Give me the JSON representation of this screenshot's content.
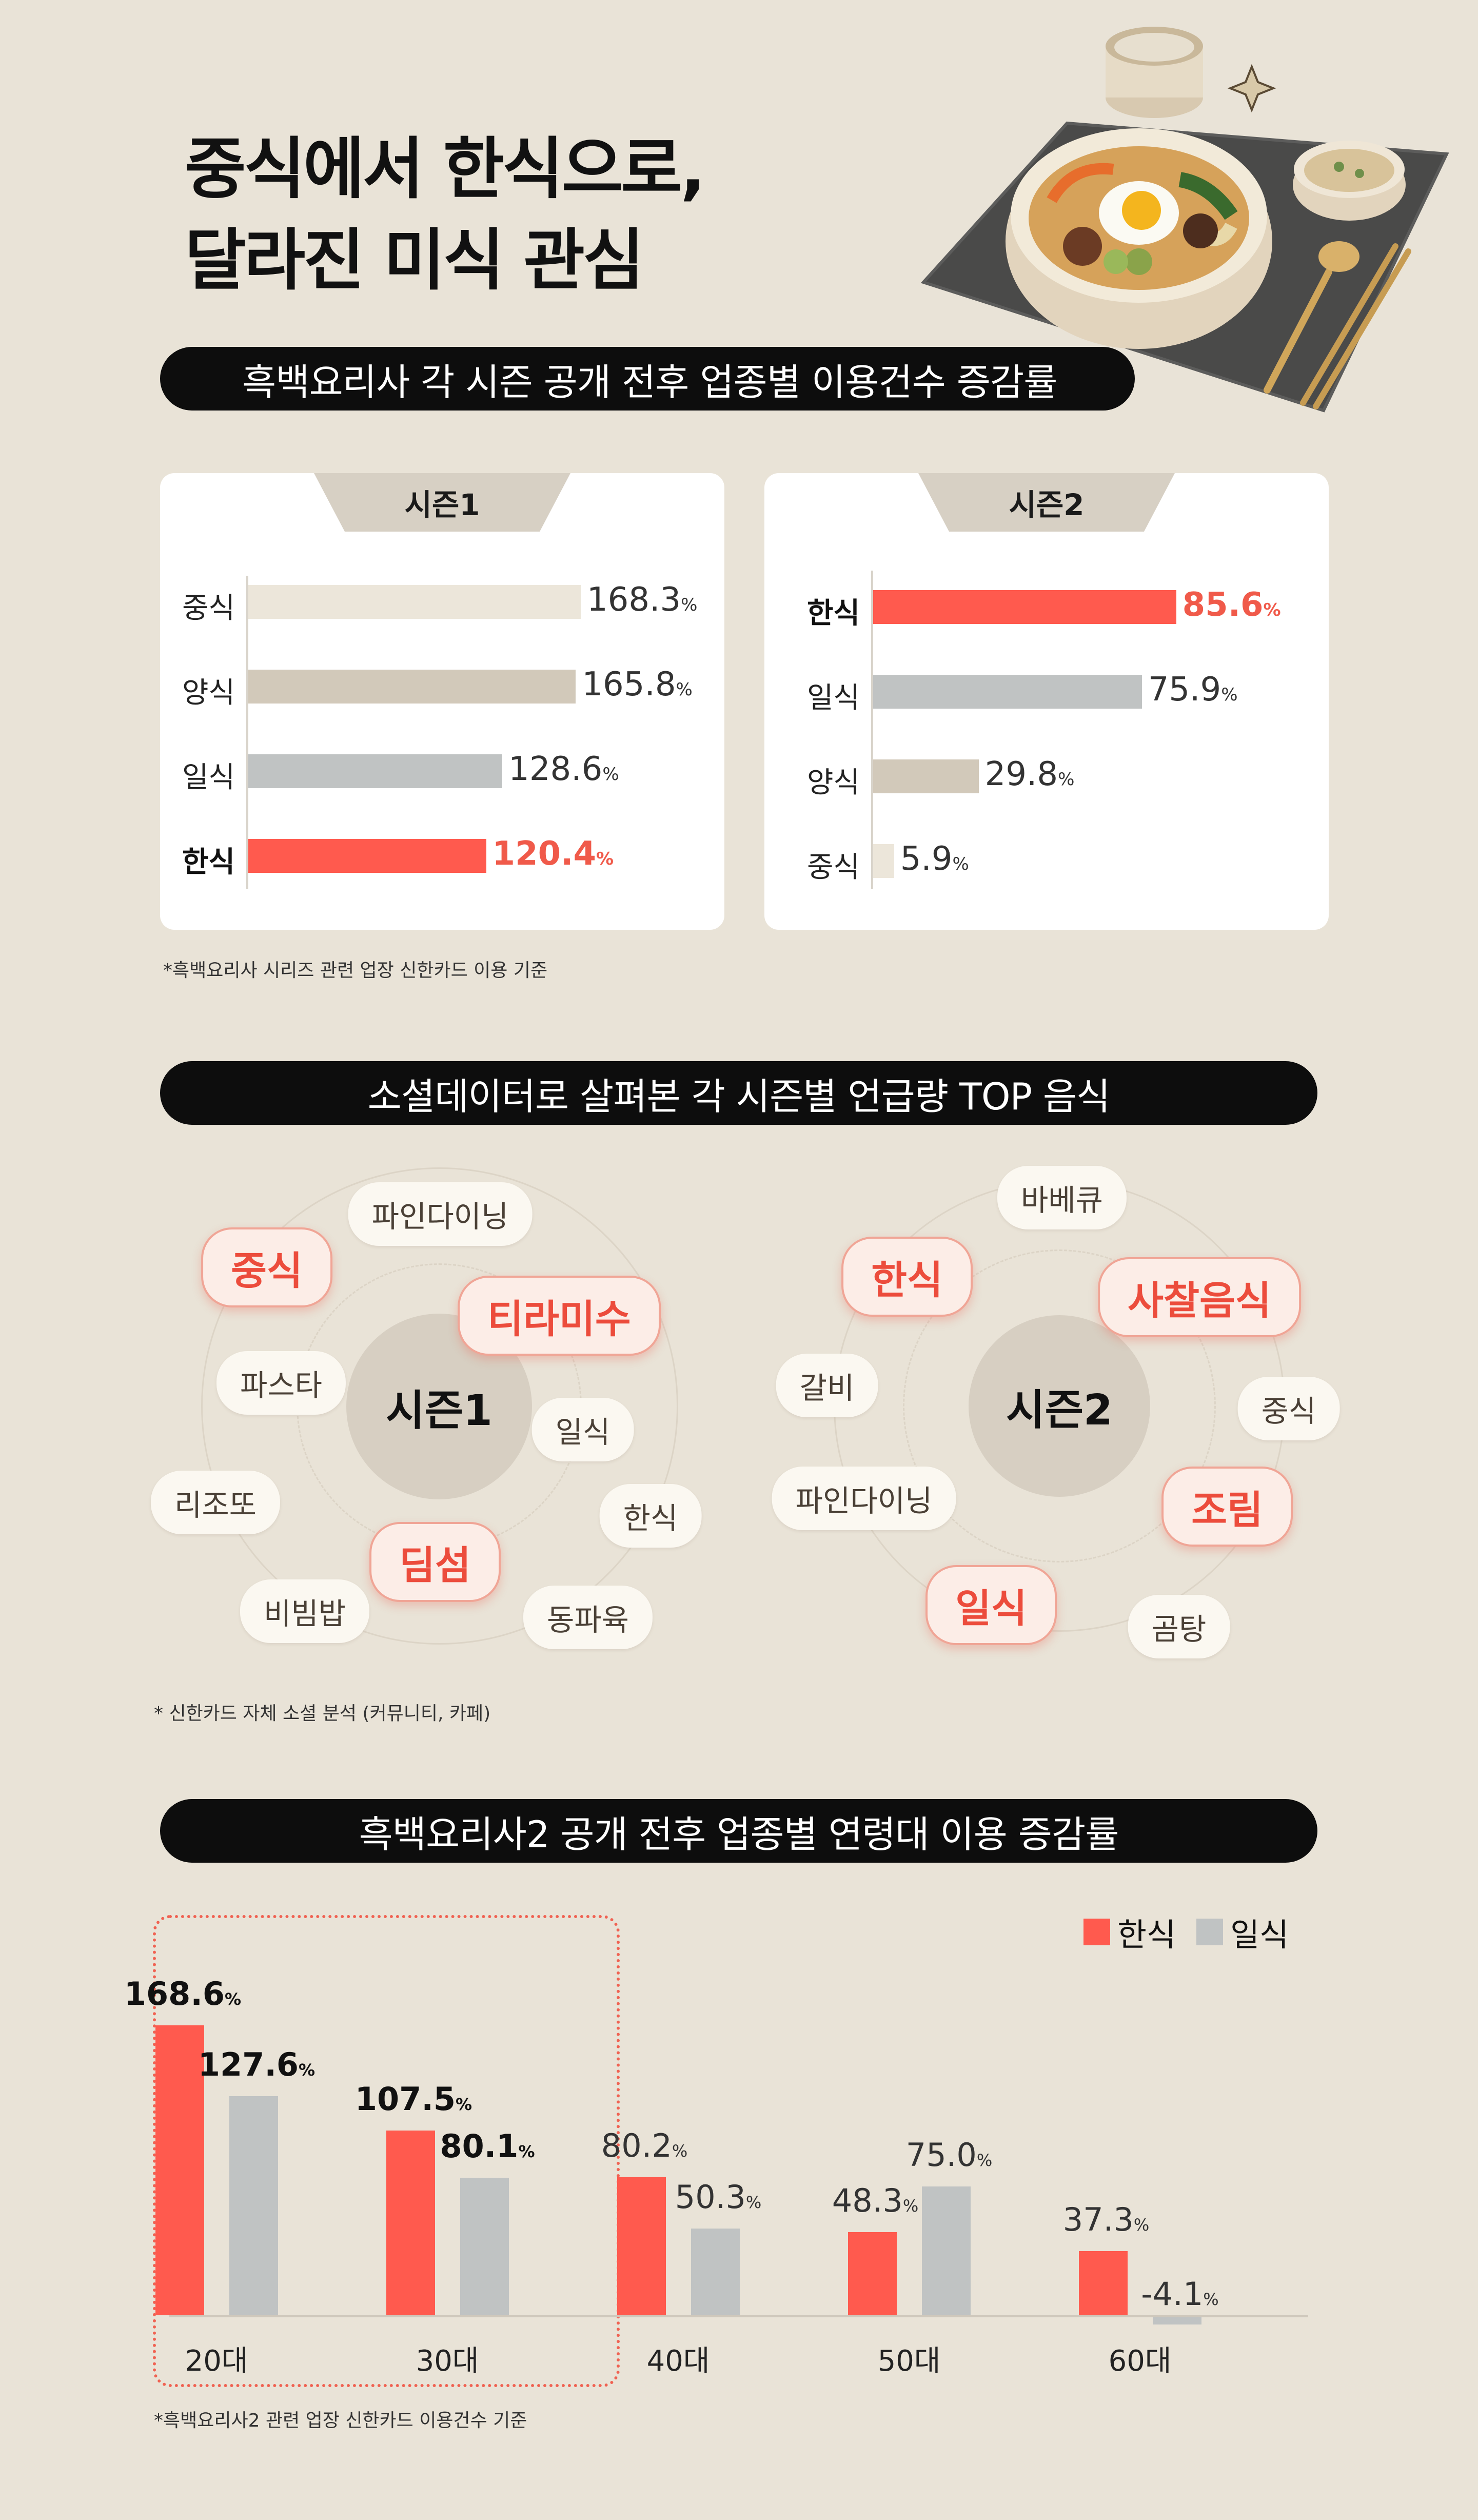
{
  "hero": {
    "title_line1": "중식에서 한식으로,",
    "title_line2": "달라진 미식 관심"
  },
  "section1": {
    "heading": "흑백요리사 각 시즌 공개 전후 업종별 이용건수 증감률",
    "note": "*흑백요리사 시리즈 관련 업장 신한카드 이용 기준"
  },
  "section2": {
    "heading": "소셜데이터로 살펴본 각 시즌별 언급량 TOP 음식",
    "note": "* 신한카드 자체 소셜 분석 (커뮤니티, 카페)",
    "season1": {
      "center": "시즌1",
      "tags": [
        "파인다이닝",
        "중식",
        "티라미수",
        "파스타",
        "일식",
        "리조또",
        "한식",
        "딤섬",
        "비빔밥",
        "동파육"
      ],
      "hot": [
        "중식",
        "티라미수",
        "딤섬"
      ]
    },
    "season2": {
      "center": "시즌2",
      "tags": [
        "바베큐",
        "한식",
        "사찰음식",
        "갈비",
        "중식",
        "파인다이닝",
        "조림",
        "일식",
        "곰탕"
      ],
      "hot": [
        "한식",
        "사찰음식",
        "조림",
        "일식"
      ]
    }
  },
  "section3": {
    "heading": "흑백요리사2 공개 전후 업종별 연령대 이용 증감률",
    "note": "*흑백요리사2 관련 업장 신한카드 이용건수 기준"
  },
  "colors": {
    "korean": "#FF5A4E",
    "japanese": "#C0C3C3",
    "chinese": "#ECE6DA",
    "western": "#D2C9BA",
    "background": "#E9E3D7"
  },
  "unit": "%",
  "chart_data": [
    {
      "type": "bar",
      "orientation": "horizontal",
      "title": "시즌1",
      "categories": [
        "중식",
        "양식",
        "일식",
        "한식"
      ],
      "values": [
        168.3,
        165.8,
        128.6,
        120.4
      ],
      "highlight": "한식",
      "unit": "%"
    },
    {
      "type": "bar",
      "orientation": "horizontal",
      "title": "시즌2",
      "categories": [
        "한식",
        "일식",
        "양식",
        "중식"
      ],
      "values": [
        85.6,
        75.9,
        29.8,
        5.9
      ],
      "highlight": "한식",
      "unit": "%"
    },
    {
      "type": "bar",
      "orientation": "vertical",
      "categories": [
        "20대",
        "30대",
        "40대",
        "50대",
        "60대"
      ],
      "series": [
        {
          "name": "한식",
          "values": [
            168.6,
            107.5,
            80.2,
            48.3,
            37.3
          ]
        },
        {
          "name": "일식",
          "values": [
            127.6,
            80.1,
            50.3,
            75.0,
            -4.1
          ]
        }
      ],
      "value_labels": [
        [
          "168.6",
          "107.5",
          "80.2",
          "48.3",
          "37.3"
        ],
        [
          "127.6",
          "80.1",
          "50.3",
          "75.0",
          "-4.1"
        ]
      ],
      "highlighted_groups": [
        "20대",
        "30대"
      ],
      "legend_position": "top-right",
      "unit": "%"
    }
  ]
}
